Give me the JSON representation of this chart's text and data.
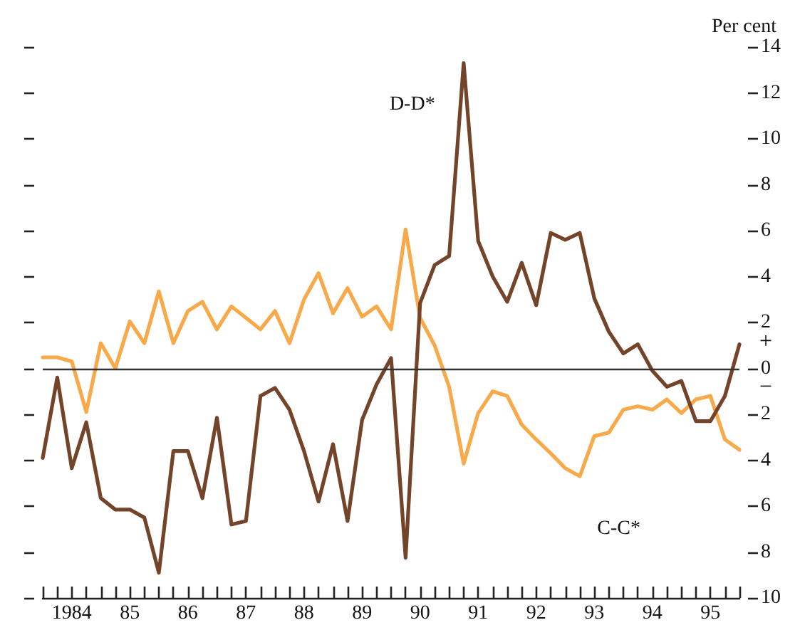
{
  "chart_data": {
    "type": "line",
    "ylabel": "Per cent",
    "annotations": [
      "+",
      "−"
    ],
    "categories": [
      null,
      null,
      "1984",
      null,
      null,
      null,
      "85",
      null,
      null,
      null,
      "86",
      null,
      null,
      null,
      "87",
      null,
      null,
      null,
      "88",
      null,
      null,
      null,
      "89",
      null,
      null,
      null,
      "90",
      null,
      null,
      null,
      "91",
      null,
      null,
      null,
      "92",
      null,
      null,
      null,
      "93",
      null,
      null,
      null,
      "94",
      null,
      null,
      null,
      "95",
      null,
      null
    ],
    "series": [
      {
        "name": "D-D*",
        "color": "#73432a",
        "values": [
          -3.9,
          -0.4,
          -4.35,
          -2.35,
          -5.65,
          -6.15,
          -6.15,
          -6.5,
          -8.9,
          -3.6,
          -3.6,
          -5.65,
          -2.15,
          -6.8,
          -6.65,
          -1.2,
          -0.85,
          -1.8,
          -3.6,
          -5.8,
          -3.3,
          -6.65,
          -2.25,
          -0.7,
          0.45,
          -8.25,
          2.85,
          4.5,
          4.9,
          13.3,
          5.55,
          4.0,
          2.9,
          4.6,
          2.75,
          5.9,
          5.6,
          5.9,
          3.05,
          1.6,
          0.65,
          1.05,
          -0.1,
          -0.8,
          -0.55,
          -2.3,
          -2.3,
          -1.2,
          1.05
        ]
      },
      {
        "name": "C-C*",
        "color": "#f8a94a",
        "values": [
          0.48,
          0.48,
          0.3,
          -1.9,
          1.1,
          0,
          2.05,
          1.1,
          3.35,
          1.1,
          2.5,
          2.9,
          1.7,
          2.7,
          2.2,
          1.7,
          2.5,
          1.1,
          3.0,
          4.15,
          2.4,
          3.5,
          2.25,
          2.7,
          1.7,
          6.05,
          2.2,
          1.0,
          -0.8,
          -4.15,
          -1.95,
          -1.0,
          -1.2,
          -2.45,
          -3.1,
          -3.7,
          -4.35,
          -4.7,
          -2.95,
          -2.8,
          -1.8,
          -1.65,
          -1.8,
          -1.35,
          -1.95,
          -1.35,
          -1.2,
          -3.1,
          -3.55
        ]
      }
    ],
    "ylim": [
      -10,
      14
    ],
    "yticks": [
      {
        "value": -10,
        "label": "10"
      },
      {
        "value": -8,
        "label": "8"
      },
      {
        "value": -6,
        "label": "6"
      },
      {
        "value": -4,
        "label": "4"
      },
      {
        "value": -2,
        "label": "2"
      },
      0,
      2,
      4,
      6,
      8,
      10,
      12,
      14
    ],
    "ref_lines": [
      {
        "axis": "y",
        "value": 0,
        "color": "#333333"
      }
    ],
    "grid": false,
    "legend": false,
    "marker": "none",
    "line_style": "solid"
  }
}
